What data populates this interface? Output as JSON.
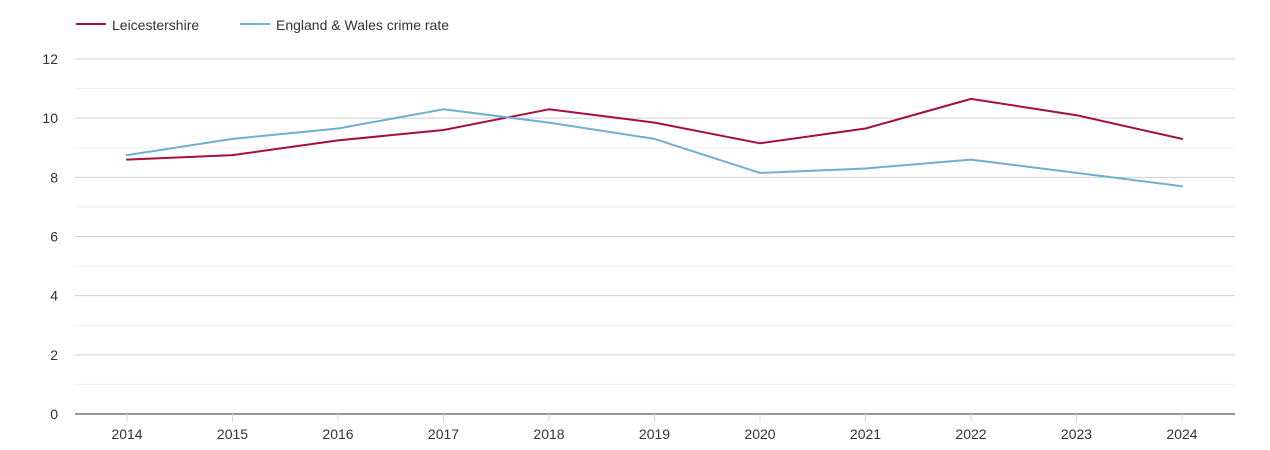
{
  "chart_data": {
    "type": "line",
    "title": "",
    "xlabel": "",
    "ylabel": "",
    "x": [
      "2014",
      "2015",
      "2016",
      "2017",
      "2018",
      "2019",
      "2020",
      "2021",
      "2022",
      "2023",
      "2024"
    ],
    "ylim": [
      0,
      12
    ],
    "y_ticks": [
      "0",
      "2",
      "4",
      "6",
      "8",
      "10",
      "12"
    ],
    "grid": true,
    "legend_position": "top-left",
    "series": [
      {
        "name": "Leicestershire",
        "color": "#a50f3a",
        "values": [
          8.6,
          8.75,
          9.25,
          9.6,
          10.3,
          9.85,
          9.15,
          9.65,
          10.65,
          10.1,
          9.3
        ]
      },
      {
        "name": "England & Wales crime rate",
        "color": "#72aed0",
        "values": [
          8.75,
          9.3,
          9.65,
          10.3,
          9.85,
          9.3,
          8.15,
          8.3,
          8.6,
          8.15,
          7.7
        ]
      }
    ]
  }
}
